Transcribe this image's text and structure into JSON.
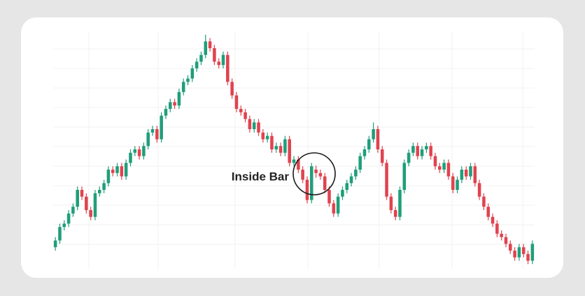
{
  "chart_data": {
    "type": "candlestick",
    "annotation": "Inside Bar",
    "up_color": "#1f9e7a",
    "down_color": "#e0434f",
    "ylim": [
      -10,
      350
    ],
    "open": [
      25,
      35,
      55,
      60,
      75,
      85,
      110,
      100,
      80,
      70,
      105,
      110,
      120,
      140,
      135,
      145,
      130,
      150,
      165,
      170,
      160,
      175,
      195,
      200,
      185,
      220,
      230,
      240,
      235,
      255,
      270,
      275,
      290,
      300,
      310,
      330,
      320,
      300,
      295,
      310,
      270,
      250,
      230,
      225,
      215,
      200,
      210,
      195,
      185,
      190,
      170,
      175,
      165,
      185,
      150,
      155,
      140,
      125,
      95,
      140,
      135,
      130,
      110,
      90,
      75,
      100,
      110,
      120,
      130,
      140,
      160,
      170,
      185,
      200,
      170,
      150,
      100,
      80,
      70,
      110,
      150,
      165,
      175,
      160,
      170,
      175,
      160,
      145,
      140,
      150,
      130,
      110,
      125,
      140,
      130,
      145,
      120,
      100,
      85,
      70,
      60,
      45,
      40,
      30,
      20,
      10,
      25,
      15,
      5
    ],
    "high": [
      40,
      60,
      65,
      80,
      90,
      115,
      115,
      105,
      85,
      110,
      115,
      125,
      145,
      145,
      150,
      150,
      155,
      170,
      175,
      175,
      180,
      200,
      205,
      205,
      225,
      235,
      245,
      245,
      260,
      275,
      280,
      295,
      305,
      315,
      340,
      335,
      325,
      305,
      315,
      315,
      275,
      255,
      235,
      230,
      220,
      215,
      215,
      200,
      195,
      195,
      180,
      180,
      190,
      190,
      160,
      160,
      145,
      130,
      150,
      146,
      140,
      135,
      115,
      95,
      105,
      115,
      125,
      135,
      145,
      165,
      175,
      190,
      210,
      205,
      175,
      155,
      105,
      85,
      115,
      155,
      170,
      180,
      180,
      175,
      180,
      180,
      165,
      150,
      155,
      155,
      135,
      130,
      145,
      145,
      150,
      150,
      125,
      105,
      90,
      75,
      65,
      50,
      45,
      35,
      25,
      30,
      30,
      20,
      35
    ],
    "low": [
      20,
      30,
      50,
      55,
      70,
      80,
      95,
      75,
      65,
      65,
      100,
      105,
      115,
      130,
      130,
      125,
      125,
      145,
      160,
      155,
      155,
      170,
      190,
      180,
      180,
      215,
      225,
      230,
      230,
      250,
      265,
      270,
      285,
      295,
      305,
      315,
      295,
      290,
      290,
      265,
      245,
      225,
      220,
      210,
      195,
      195,
      190,
      180,
      180,
      165,
      165,
      160,
      160,
      145,
      145,
      135,
      120,
      90,
      90,
      128,
      125,
      105,
      85,
      70,
      70,
      95,
      105,
      115,
      125,
      135,
      155,
      165,
      180,
      165,
      145,
      95,
      75,
      65,
      65,
      105,
      145,
      160,
      155,
      155,
      165,
      155,
      140,
      135,
      135,
      125,
      105,
      105,
      120,
      125,
      125,
      115,
      95,
      80,
      65,
      55,
      40,
      35,
      25,
      15,
      5,
      5,
      10,
      0,
      0
    ],
    "close": [
      35,
      55,
      60,
      75,
      85,
      110,
      100,
      80,
      70,
      105,
      110,
      120,
      140,
      135,
      145,
      130,
      150,
      165,
      170,
      160,
      175,
      195,
      200,
      185,
      220,
      230,
      240,
      235,
      255,
      270,
      275,
      290,
      300,
      310,
      330,
      320,
      300,
      295,
      310,
      270,
      250,
      230,
      225,
      215,
      200,
      210,
      195,
      185,
      190,
      170,
      175,
      165,
      185,
      150,
      155,
      140,
      125,
      95,
      145,
      135,
      130,
      110,
      90,
      75,
      100,
      110,
      120,
      130,
      140,
      160,
      170,
      185,
      200,
      170,
      150,
      100,
      80,
      70,
      110,
      150,
      165,
      175,
      160,
      170,
      175,
      160,
      145,
      140,
      150,
      130,
      110,
      125,
      140,
      130,
      145,
      120,
      100,
      85,
      70,
      60,
      45,
      40,
      30,
      20,
      10,
      25,
      15,
      5,
      30
    ]
  }
}
